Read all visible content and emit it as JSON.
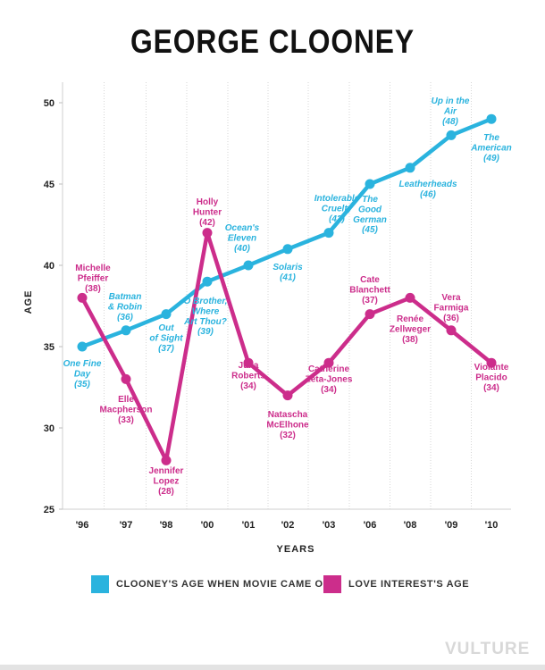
{
  "title": "GEORGE CLOONEY",
  "watermark": "VULTURE",
  "colors": {
    "clooney": "#2ab3de",
    "love_interest": "#cc2d8b"
  },
  "chart_data": {
    "type": "line",
    "title": "GEORGE CLOONEY",
    "xlabel": "YEARS",
    "ylabel": "AGE",
    "ylim": [
      25,
      50
    ],
    "yticks": [
      25,
      30,
      35,
      40,
      45,
      50
    ],
    "categories": [
      "'96",
      "'97",
      "'98",
      "'00",
      "'01",
      "'02",
      "'03",
      "'06",
      "'08",
      "'09",
      "'10"
    ],
    "legend_position": "bottom",
    "series": [
      {
        "name": "CLOONEY'S AGE WHEN MOVIE CAME OUT",
        "values": [
          35,
          36,
          37,
          39,
          40,
          41,
          42,
          45,
          46,
          48,
          49
        ],
        "labels": [
          [
            "One Fine",
            "Day",
            "(35)"
          ],
          [
            "Batman",
            "& Robin",
            "(36)"
          ],
          [
            "Out",
            "of Sight",
            "(37)"
          ],
          [
            "O Brother,",
            "Where",
            "Art Thou?",
            "(39)"
          ],
          [
            "Ocean's",
            "Eleven",
            "(40)"
          ],
          [
            "Solaris",
            "(41)"
          ],
          [
            "Intolerable",
            "Cruelty",
            "(42)"
          ],
          [
            "The",
            "Good",
            "German",
            "(45)"
          ],
          [
            "Leatherheads",
            "(46)"
          ],
          [
            "Up in the",
            "Air",
            "(48)"
          ],
          [
            "The",
            "American",
            "(49)"
          ]
        ]
      },
      {
        "name": "LOVE INTEREST'S AGE",
        "values": [
          38,
          33,
          28,
          42,
          34,
          32,
          34,
          37,
          38,
          36,
          34
        ],
        "labels": [
          [
            "Michelle",
            "Pfeiffer",
            "(38)"
          ],
          [
            "Elle",
            "Macpherson",
            "(33)"
          ],
          [
            "Jennifer",
            "Lopez",
            "(28)"
          ],
          [
            "Holly",
            "Hunter",
            "(42)"
          ],
          [
            "Julia",
            "Roberts",
            "(34)"
          ],
          [
            "Natascha",
            "McElhone",
            "(32)"
          ],
          [
            "Catherine",
            "Zeta-Jones",
            "(34)"
          ],
          [
            "Cate",
            "Blanchett",
            "(37)"
          ],
          [
            "Renée",
            "Zellweger",
            "(38)"
          ],
          [
            "Vera",
            "Farmiga",
            "(36)"
          ],
          [
            "Violante",
            "Placido",
            "(34)"
          ]
        ]
      }
    ]
  }
}
